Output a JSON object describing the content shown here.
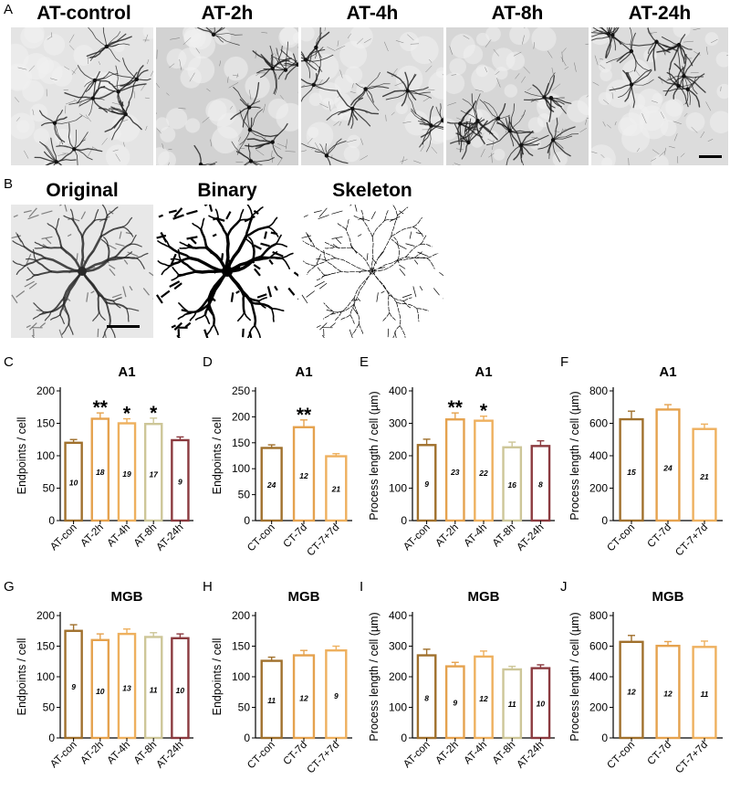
{
  "panel_labels": {
    "A": "A",
    "B": "B",
    "C": "C",
    "D": "D",
    "E": "E",
    "F": "F",
    "G": "G",
    "H": "H",
    "I": "I",
    "J": "J"
  },
  "panel_a": {
    "titles": [
      "AT-control",
      "AT-2h",
      "AT-4h",
      "AT-8h",
      "AT-24h"
    ]
  },
  "panel_b": {
    "titles": [
      "Original",
      "Binary",
      "Skeleton"
    ]
  },
  "chart_data": [
    {
      "id": "C",
      "type": "bar",
      "title": "A1",
      "ylabel": "Endpoints / cell",
      "ylim": [
        0,
        200
      ],
      "yticks": [
        0,
        50,
        100,
        150,
        200
      ],
      "categories": [
        "AT-con",
        "AT-2h",
        "AT-4h",
        "AT-8h",
        "AT-24h"
      ],
      "values": [
        120,
        157,
        150,
        149,
        124
      ],
      "errors": [
        5,
        9,
        7,
        9,
        5
      ],
      "n": [
        "10",
        "18",
        "19",
        "17",
        "9"
      ],
      "sig": [
        "",
        "**",
        "*",
        "*",
        ""
      ],
      "colors": [
        "#A0702C",
        "#E5A24E",
        "#EEB05E",
        "#CDC698",
        "#8B3A3F"
      ]
    },
    {
      "id": "D",
      "type": "bar",
      "title": "A1",
      "ylabel": "Endpoints / cell",
      "ylim": [
        0,
        250
      ],
      "yticks": [
        0,
        50,
        100,
        150,
        200,
        250
      ],
      "categories": [
        "CT-con",
        "CT-7d",
        "CT-7+7d"
      ],
      "values": [
        140,
        180,
        124
      ],
      "errors": [
        6,
        14,
        5
      ],
      "n": [
        "24",
        "12",
        "21"
      ],
      "sig": [
        "",
        "**",
        ""
      ],
      "colors": [
        "#A0702C",
        "#E5A24E",
        "#EEB05E"
      ]
    },
    {
      "id": "E",
      "type": "bar",
      "title": "A1",
      "ylabel": "Process length / cell (µm)",
      "ylim": [
        0,
        400
      ],
      "yticks": [
        0,
        100,
        200,
        300,
        400
      ],
      "categories": [
        "AT-con",
        "AT-2h",
        "AT-4h",
        "AT-8h",
        "AT-24h"
      ],
      "values": [
        233,
        312,
        308,
        226,
        230
      ],
      "errors": [
        18,
        20,
        14,
        16,
        16
      ],
      "n": [
        "9",
        "23",
        "22",
        "16",
        "8"
      ],
      "sig": [
        "",
        "**",
        "*",
        "",
        ""
      ],
      "colors": [
        "#A0702C",
        "#E5A24E",
        "#EEB05E",
        "#CDC698",
        "#8B3A3F"
      ]
    },
    {
      "id": "F",
      "type": "bar",
      "title": "A1",
      "ylabel": "Process length / cell (µm)",
      "ylim": [
        0,
        800
      ],
      "yticks": [
        0,
        200,
        400,
        600,
        800
      ],
      "categories": [
        "CT-con",
        "CT-7d",
        "CT-7+7d"
      ],
      "values": [
        625,
        685,
        565
      ],
      "errors": [
        50,
        30,
        30
      ],
      "n": [
        "15",
        "24",
        "21"
      ],
      "sig": [
        "",
        "",
        ""
      ],
      "colors": [
        "#A0702C",
        "#E5A24E",
        "#EEB05E"
      ]
    },
    {
      "id": "G",
      "type": "bar",
      "title": "MGB",
      "ylabel": "Endpoints / cell",
      "ylim": [
        0,
        200
      ],
      "yticks": [
        0,
        50,
        100,
        150,
        200
      ],
      "categories": [
        "AT-con",
        "AT-2h",
        "AT-4h",
        "AT-8h",
        "AT-24h"
      ],
      "values": [
        175,
        160,
        170,
        165,
        163
      ],
      "errors": [
        10,
        10,
        8,
        7,
        7
      ],
      "n": [
        "9",
        "10",
        "13",
        "11",
        "10"
      ],
      "sig": [
        "",
        "",
        "",
        "",
        ""
      ],
      "colors": [
        "#A0702C",
        "#E5A24E",
        "#EEB05E",
        "#CDC698",
        "#8B3A3F"
      ]
    },
    {
      "id": "H",
      "type": "bar",
      "title": "MGB",
      "ylabel": "Endpoints / cell",
      "ylim": [
        0,
        200
      ],
      "yticks": [
        0,
        50,
        100,
        150,
        200
      ],
      "categories": [
        "CT-con",
        "CT-7d",
        "CT-7+7d"
      ],
      "values": [
        126,
        135,
        143
      ],
      "errors": [
        6,
        8,
        7
      ],
      "n": [
        "11",
        "12",
        "9"
      ],
      "sig": [
        "",
        "",
        ""
      ],
      "colors": [
        "#A0702C",
        "#E5A24E",
        "#EEB05E"
      ]
    },
    {
      "id": "I",
      "type": "bar",
      "title": "MGB",
      "ylabel": "Process length / cell (µm)",
      "ylim": [
        0,
        400
      ],
      "yticks": [
        0,
        100,
        200,
        300,
        400
      ],
      "categories": [
        "AT-con",
        "AT-2h",
        "AT-4h",
        "AT-8h",
        "AT-24h"
      ],
      "values": [
        270,
        234,
        266,
        224,
        228
      ],
      "errors": [
        20,
        13,
        18,
        10,
        11
      ],
      "n": [
        "8",
        "9",
        "12",
        "11",
        "10"
      ],
      "sig": [
        "",
        "",
        "",
        "",
        ""
      ],
      "colors": [
        "#A0702C",
        "#E5A24E",
        "#EEB05E",
        "#CDC698",
        "#8B3A3F"
      ]
    },
    {
      "id": "J",
      "type": "bar",
      "title": "MGB",
      "ylabel": "Process length / cell (µm)",
      "ylim": [
        0,
        800
      ],
      "yticks": [
        0,
        200,
        400,
        600,
        800
      ],
      "categories": [
        "CT-con",
        "CT-7d",
        "CT-7+7d"
      ],
      "values": [
        628,
        602,
        595
      ],
      "errors": [
        42,
        28,
        38
      ],
      "n": [
        "12",
        "12",
        "11"
      ],
      "sig": [
        "",
        "",
        ""
      ],
      "colors": [
        "#A0702C",
        "#E5A24E",
        "#EEB05E"
      ]
    }
  ]
}
